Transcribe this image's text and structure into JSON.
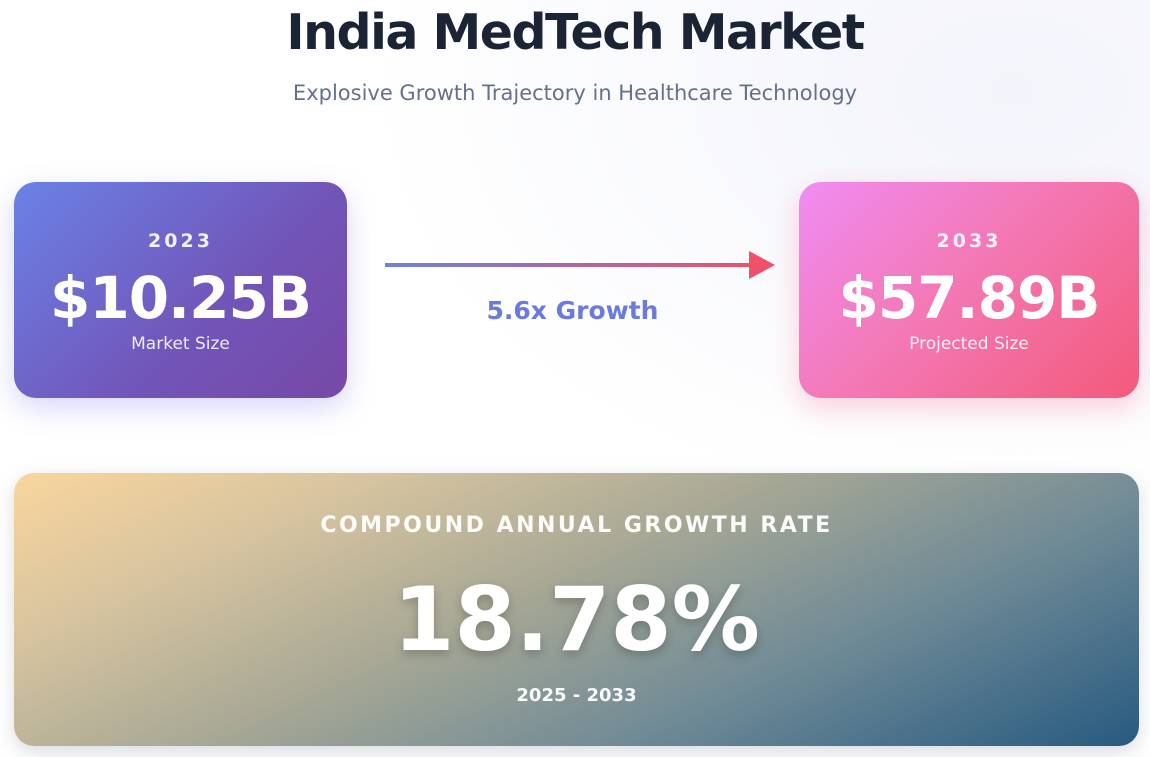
{
  "header": {
    "title": "India MedTech Market",
    "subtitle": "Explosive Growth Trajectory in Healthcare Technology"
  },
  "current": {
    "year": "2023",
    "value": "$10.25B",
    "label": "Market Size"
  },
  "projected": {
    "year": "2033",
    "value": "$57.89B",
    "label": "Projected Size"
  },
  "growth": {
    "label": "5.6x Growth"
  },
  "cagr": {
    "heading": "COMPOUND ANNUAL GROWTH RATE",
    "value": "18.78%",
    "range": "2025 - 2033"
  },
  "colors": {
    "arrow_start": "#6a82e6",
    "arrow_end": "#f0506a"
  }
}
